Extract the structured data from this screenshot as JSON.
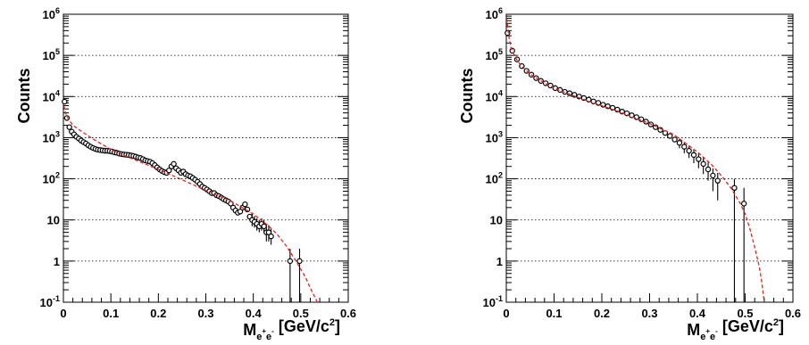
{
  "chart_data": [
    {
      "type": "scatter",
      "ylabel": "Counts",
      "xlabel": {
        "base": "M",
        "sub_main": "e",
        "sub_sup1": "+",
        "sub_e2": "e",
        "sub_sup2": "-",
        "unit": "[GeV/c",
        "unit_sup": "2",
        "unit_close": "]"
      },
      "xlim": [
        0,
        0.6
      ],
      "ylim": [
        0.1,
        1000000
      ],
      "yscale": "log",
      "grid": "horizontal dotted",
      "x_ticks": [
        "0",
        "0.1",
        "0.2",
        "0.3",
        "0.4",
        "0.5",
        "0.6"
      ],
      "y_ticks": [
        {
          "v": 0.1,
          "base": "10",
          "exp": "-1"
        },
        {
          "v": 1,
          "base": "1",
          "exp": ""
        },
        {
          "v": 10,
          "base": "10",
          "exp": ""
        },
        {
          "v": 100,
          "base": "10",
          "exp": "2"
        },
        {
          "v": 1000,
          "base": "10",
          "exp": "3"
        },
        {
          "v": 10000,
          "base": "10",
          "exp": "4"
        },
        {
          "v": 100000,
          "base": "10",
          "exp": "5"
        },
        {
          "v": 1000000,
          "base": "10",
          "exp": "6"
        }
      ],
      "series": [
        {
          "style": "data points",
          "color": "#000000",
          "x": [
            0.0025,
            0.0075,
            0.0125,
            0.0175,
            0.0225,
            0.0275,
            0.0325,
            0.0375,
            0.0425,
            0.0475,
            0.0525,
            0.0575,
            0.0625,
            0.0675,
            0.0725,
            0.0775,
            0.0825,
            0.0875,
            0.0925,
            0.0975,
            0.1025,
            0.1075,
            0.1125,
            0.1175,
            0.1225,
            0.1275,
            0.1325,
            0.1375,
            0.1425,
            0.1475,
            0.1525,
            0.1575,
            0.1625,
            0.1675,
            0.1725,
            0.1775,
            0.1825,
            0.1875,
            0.1925,
            0.1975,
            0.2025,
            0.2075,
            0.2125,
            0.2175,
            0.2225,
            0.2275,
            0.2325,
            0.2375,
            0.2425,
            0.2475,
            0.2525,
            0.2575,
            0.2625,
            0.2675,
            0.2725,
            0.2775,
            0.2825,
            0.2875,
            0.2925,
            0.2975,
            0.3025,
            0.3075,
            0.3125,
            0.3175,
            0.3225,
            0.3275,
            0.3325,
            0.3375,
            0.3425,
            0.3475,
            0.3525,
            0.3575,
            0.3625,
            0.3675,
            0.3725,
            0.3775,
            0.3825,
            0.3875,
            0.3925,
            0.3975,
            0.4025,
            0.4075,
            0.4125,
            0.4175,
            0.4225,
            0.4275,
            0.4325,
            0.4375,
            0.4775,
            0.4975
          ],
          "y": [
            7500,
            3000,
            1800,
            1400,
            1200,
            1050,
            950,
            850,
            780,
            720,
            650,
            600,
            560,
            530,
            510,
            500,
            490,
            480,
            480,
            470,
            460,
            440,
            430,
            410,
            400,
            390,
            385,
            380,
            370,
            360,
            345,
            330,
            320,
            300,
            280,
            270,
            260,
            240,
            215,
            190,
            170,
            155,
            145,
            140,
            160,
            200,
            230,
            180,
            160,
            140,
            150,
            130,
            120,
            115,
            105,
            95,
            85,
            75,
            65,
            60,
            55,
            50,
            45,
            45,
            40,
            38,
            35,
            32,
            30,
            28,
            25,
            20,
            17,
            15,
            16,
            20,
            24,
            18,
            12,
            10,
            9,
            8,
            7,
            8,
            7,
            5,
            5,
            4,
            1,
            1
          ],
          "err_up": [
            0,
            0,
            0,
            0,
            0,
            0,
            0,
            0,
            0,
            0,
            0,
            0,
            0,
            0,
            0,
            0,
            0,
            0,
            0,
            0,
            0,
            0,
            0,
            0,
            0,
            0,
            0,
            0,
            0,
            0,
            0,
            0,
            0,
            0,
            0,
            0,
            0,
            0,
            0,
            0,
            0,
            0,
            0,
            0,
            0,
            0,
            0,
            0,
            0,
            0,
            0,
            0,
            0,
            0,
            0,
            0,
            0,
            0,
            0,
            0,
            0,
            0,
            0,
            0,
            0,
            0,
            0,
            0,
            0,
            0,
            0,
            0,
            0,
            0,
            0,
            0,
            0,
            0,
            0,
            4,
            3.5,
            3,
            3,
            3,
            3,
            2.5,
            2.5,
            2,
            1,
            1
          ],
          "err_down": [
            0,
            0,
            0,
            0,
            0,
            0,
            0,
            0,
            0,
            0,
            0,
            0,
            0,
            0,
            0,
            0,
            0,
            0,
            0,
            0,
            0,
            0,
            0,
            0,
            0,
            0,
            0,
            0,
            0,
            0,
            0,
            0,
            0,
            0,
            0,
            0,
            0,
            0,
            0,
            0,
            0,
            0,
            0,
            0,
            0,
            0,
            0,
            0,
            0,
            0,
            0,
            0,
            0,
            0,
            0,
            0,
            0,
            0,
            0,
            0,
            0,
            0,
            0,
            0,
            0,
            0,
            0,
            0,
            0,
            0,
            0,
            0,
            0,
            0,
            0,
            0,
            0,
            0,
            0,
            3,
            2.5,
            2.5,
            2,
            2.5,
            2,
            2,
            2,
            1.5,
            1,
            1
          ]
        },
        {
          "style": "dashed fit",
          "color": "#e8211d",
          "x": [
            0.001,
            0.005,
            0.01,
            0.02,
            0.03,
            0.05,
            0.07,
            0.1,
            0.13,
            0.16,
            0.2,
            0.25,
            0.3,
            0.35,
            0.4,
            0.43,
            0.45,
            0.47,
            0.49,
            0.51,
            0.52,
            0.53,
            0.535,
            0.54
          ],
          "y": [
            6000,
            3800,
            2900,
            2000,
            1650,
            1150,
            820,
            520,
            360,
            260,
            170,
            95,
            52,
            30,
            14,
            7.5,
            4.5,
            2.3,
            1,
            0.4,
            0.22,
            0.13,
            0.1,
            0.085
          ]
        }
      ]
    },
    {
      "type": "scatter",
      "ylabel": "Counts",
      "xlabel": {
        "base": "M",
        "sub_main": "e",
        "sub_sup1": "+",
        "sub_e2": "e",
        "sub_sup2": "-",
        "unit": "[GeV/c",
        "unit_sup": "2",
        "unit_close": "]"
      },
      "xlim": [
        0,
        0.6
      ],
      "ylim": [
        0.1,
        1000000
      ],
      "yscale": "log",
      "grid": "horizontal dotted",
      "x_ticks": [
        "0",
        "0.1",
        "0.2",
        "0.3",
        "0.4",
        "0.5",
        "0.6"
      ],
      "y_ticks": [
        {
          "v": 0.1,
          "base": "10",
          "exp": "-1"
        },
        {
          "v": 1,
          "base": "1",
          "exp": ""
        },
        {
          "v": 10,
          "base": "10",
          "exp": ""
        },
        {
          "v": 100,
          "base": "10",
          "exp": "2"
        },
        {
          "v": 1000,
          "base": "10",
          "exp": "3"
        },
        {
          "v": 10000,
          "base": "10",
          "exp": "4"
        },
        {
          "v": 100000,
          "base": "10",
          "exp": "5"
        },
        {
          "v": 1000000,
          "base": "10",
          "exp": "6"
        }
      ],
      "series": [
        {
          "style": "data points",
          "color": "#000000",
          "x": [
            0.0025,
            0.0125,
            0.0225,
            0.0325,
            0.0425,
            0.0525,
            0.0625,
            0.0725,
            0.0825,
            0.0925,
            0.1025,
            0.1125,
            0.1225,
            0.1325,
            0.1425,
            0.1525,
            0.1625,
            0.1725,
            0.1825,
            0.1925,
            0.2025,
            0.2125,
            0.2225,
            0.2325,
            0.2425,
            0.2525,
            0.2625,
            0.2725,
            0.2825,
            0.2925,
            0.3025,
            0.3125,
            0.3225,
            0.3325,
            0.3425,
            0.3525,
            0.3625,
            0.3725,
            0.3825,
            0.3925,
            0.4025,
            0.4125,
            0.4225,
            0.4325,
            0.4425,
            0.4775,
            0.4975
          ],
          "y": [
            350000,
            130000,
            80000,
            55000,
            42000,
            34000,
            28000,
            24000,
            21000,
            18500,
            16000,
            14500,
            13000,
            12000,
            11000,
            10000,
            9200,
            8400,
            7600,
            7000,
            6300,
            5800,
            5300,
            4800,
            4300,
            3900,
            3500,
            3150,
            2800,
            2450,
            2100,
            1800,
            1550,
            1300,
            1100,
            900,
            750,
            600,
            480,
            380,
            300,
            230,
            170,
            120,
            90,
            60,
            25
          ],
          "err_up": [
            0,
            0,
            0,
            0,
            0,
            0,
            0,
            0,
            0,
            0,
            0,
            0,
            0,
            0,
            0,
            0,
            0,
            0,
            0,
            0,
            0,
            0,
            0,
            0,
            0,
            0,
            0,
            0,
            0,
            0,
            0,
            0,
            0,
            0,
            0,
            0,
            200,
            180,
            160,
            140,
            120,
            100,
            80,
            60,
            50,
            40,
            35
          ],
          "err_down": [
            0,
            0,
            0,
            0,
            0,
            0,
            0,
            0,
            0,
            0,
            0,
            0,
            0,
            0,
            0,
            0,
            0,
            0,
            0,
            0,
            0,
            0,
            0,
            0,
            0,
            0,
            0,
            0,
            0,
            0,
            0,
            0,
            0,
            0,
            0,
            0,
            200,
            180,
            160,
            140,
            120,
            100,
            80,
            70,
            60,
            60,
            25
          ]
        },
        {
          "style": "dashed fit",
          "color": "#e8211d",
          "x": [
            0.001,
            0.005,
            0.01,
            0.02,
            0.03,
            0.05,
            0.07,
            0.1,
            0.15,
            0.2,
            0.25,
            0.3,
            0.35,
            0.4,
            0.43,
            0.45,
            0.47,
            0.49,
            0.5,
            0.51,
            0.52,
            0.53,
            0.535,
            0.54
          ],
          "y": [
            800000,
            300000,
            150000,
            85000,
            58000,
            35000,
            25000,
            16000,
            9500,
            6000,
            3700,
            2200,
            1200,
            450,
            220,
            120,
            60,
            25,
            14,
            6,
            2.2,
            0.7,
            0.3,
            0.1
          ]
        }
      ]
    }
  ]
}
